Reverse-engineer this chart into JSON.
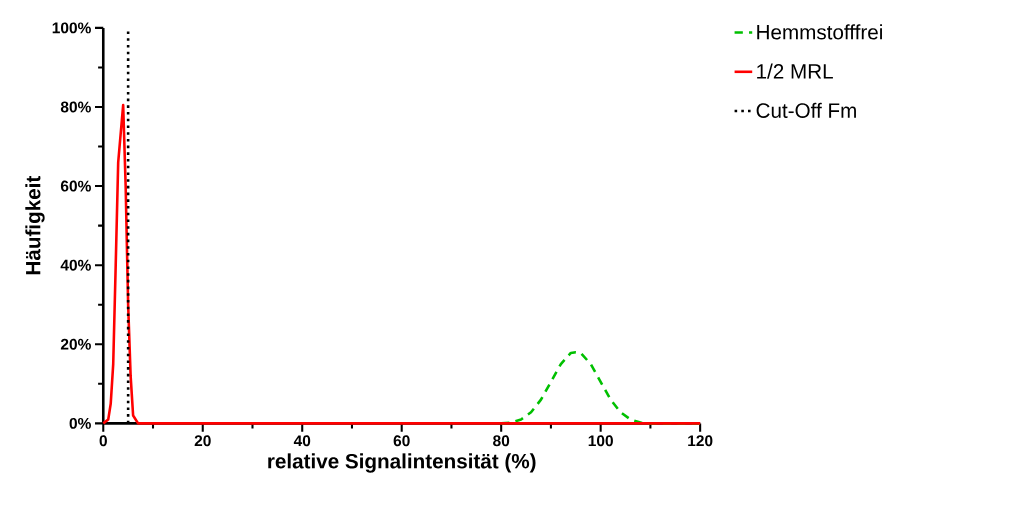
{
  "chart_data": {
    "type": "line",
    "xlabel": "relative Signalintensität (%)",
    "ylabel": "Häufigkeit",
    "xlim": [
      0,
      120
    ],
    "xticks": [
      0,
      20,
      40,
      60,
      80,
      100,
      120
    ],
    "ylim": [
      0,
      100
    ],
    "yticks": [
      {
        "value": 0,
        "label": "0%"
      },
      {
        "value": 20,
        "label": "20%"
      },
      {
        "value": 40,
        "label": "40%"
      },
      {
        "value": 60,
        "label": "60%"
      },
      {
        "value": 80,
        "label": "80%"
      },
      {
        "value": 100,
        "label": "100%"
      }
    ],
    "legend": "right",
    "grid": false,
    "marker": "none",
    "series": [
      {
        "name": "Hemmstofffrei",
        "color": "#00c000",
        "line_style": "dashed",
        "x": [
          80,
          82,
          84,
          86,
          88,
          90,
          92,
          94,
          95,
          96,
          98,
          100,
          102,
          104,
          106,
          108,
          110,
          120
        ],
        "values": [
          0,
          0.2,
          1,
          2.8,
          6,
          10.5,
          15,
          17.8,
          18,
          17.8,
          15,
          10.5,
          6,
          2.8,
          1,
          0.2,
          0,
          0
        ]
      },
      {
        "name": "1/2 MRL",
        "color": "#ff0000",
        "line_style": "solid",
        "x": [
          0,
          1,
          1.5,
          2,
          2.5,
          3,
          4,
          4.5,
          5,
          5.5,
          6,
          7,
          10,
          120
        ],
        "values": [
          0,
          1,
          5,
          15,
          40,
          66,
          80.5,
          60,
          30,
          12,
          2,
          0,
          0,
          0
        ]
      },
      {
        "name": "Cut-Off Fm",
        "color": "#000000",
        "line_style": "dotted",
        "x": [
          5,
          5
        ],
        "values": [
          0,
          100
        ]
      }
    ]
  }
}
